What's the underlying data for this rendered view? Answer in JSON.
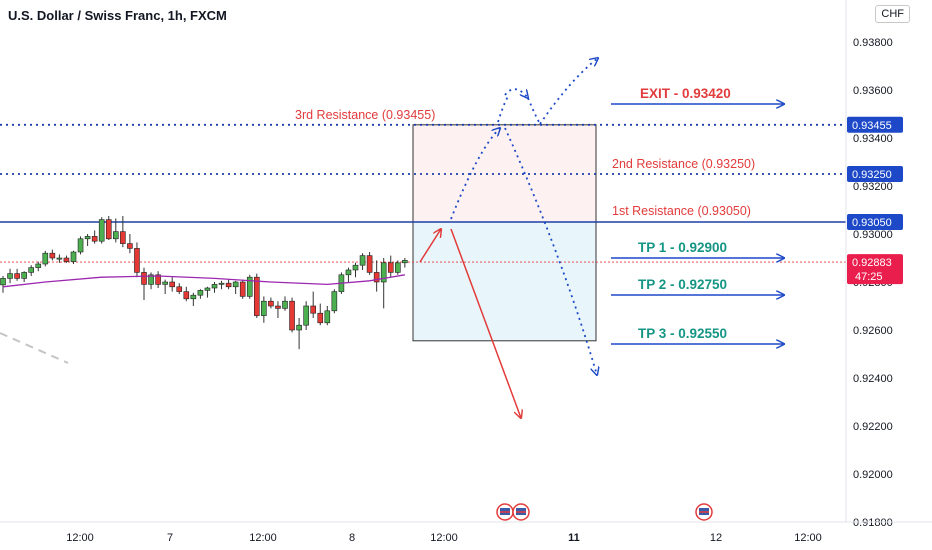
{
  "title": "U.S. Dollar / Swiss Franc, 1h, FXCM",
  "currency": "CHF",
  "colors": {
    "resistance_line": "#1d3ea8",
    "resistance_text": "#e23b3b",
    "tp_text": "#159584",
    "exit_text": "#e23b3b",
    "arrow": "#1d49c8",
    "bull": "#4caf50",
    "bear": "#e53935",
    "ma": "#9c27b0",
    "price_badge": "#e91e4d",
    "level_badge": "#1d49c8"
  },
  "chart_data": {
    "type": "candlestick",
    "ylim": [
      0.918,
      0.939
    ],
    "y_ticks": [
      "0.93800",
      "0.93600",
      "0.93400",
      "0.93200",
      "0.93000",
      "0.92800",
      "0.92600",
      "0.92400",
      "0.92200",
      "0.92000",
      "0.91800"
    ],
    "x_ticks": [
      {
        "label": "12:00",
        "bold": false
      },
      {
        "label": "7",
        "bold": false
      },
      {
        "label": "12:00",
        "bold": false
      },
      {
        "label": "8",
        "bold": false
      },
      {
        "label": "12:00",
        "bold": false
      },
      {
        "label": "11",
        "bold": true
      },
      {
        "label": "12",
        "bold": false
      },
      {
        "label": "12:00",
        "bold": false
      }
    ],
    "candles": [
      [
        0.92788,
        0.92825,
        0.92755,
        0.92815
      ],
      [
        0.92815,
        0.92855,
        0.92795,
        0.92835
      ],
      [
        0.92835,
        0.92855,
        0.92805,
        0.92815
      ],
      [
        0.92815,
        0.92845,
        0.928,
        0.9284
      ],
      [
        0.9284,
        0.9287,
        0.92825,
        0.9286
      ],
      [
        0.9286,
        0.92885,
        0.92845,
        0.92875
      ],
      [
        0.92875,
        0.9293,
        0.92865,
        0.9292
      ],
      [
        0.9292,
        0.92935,
        0.9289,
        0.929
      ],
      [
        0.929,
        0.92915,
        0.9288,
        0.929
      ],
      [
        0.929,
        0.9291,
        0.9288,
        0.92885
      ],
      [
        0.92885,
        0.9293,
        0.92875,
        0.92925
      ],
      [
        0.92925,
        0.9299,
        0.92915,
        0.9298
      ],
      [
        0.9298,
        0.93,
        0.9295,
        0.9299
      ],
      [
        0.9299,
        0.93015,
        0.9296,
        0.9297
      ],
      [
        0.9297,
        0.9307,
        0.9296,
        0.9306
      ],
      [
        0.9306,
        0.93075,
        0.92975,
        0.9298
      ],
      [
        0.9298,
        0.93065,
        0.92965,
        0.9301
      ],
      [
        0.9301,
        0.93075,
        0.92945,
        0.9296
      ],
      [
        0.9296,
        0.93,
        0.9292,
        0.9294
      ],
      [
        0.9294,
        0.92965,
        0.9282,
        0.9284
      ],
      [
        0.9284,
        0.9286,
        0.92725,
        0.9279
      ],
      [
        0.9279,
        0.9284,
        0.9277,
        0.9283
      ],
      [
        0.9283,
        0.92845,
        0.92775,
        0.9279
      ],
      [
        0.9279,
        0.9281,
        0.9275,
        0.928
      ],
      [
        0.928,
        0.9282,
        0.9276,
        0.9278
      ],
      [
        0.9278,
        0.92795,
        0.9275,
        0.9276
      ],
      [
        0.9276,
        0.9278,
        0.9272,
        0.9273
      ],
      [
        0.9273,
        0.92755,
        0.927,
        0.92745
      ],
      [
        0.92745,
        0.9277,
        0.9273,
        0.92765
      ],
      [
        0.92765,
        0.9278,
        0.92735,
        0.92775
      ],
      [
        0.92775,
        0.928,
        0.92755,
        0.9279
      ],
      [
        0.9279,
        0.92805,
        0.9277,
        0.92795
      ],
      [
        0.92795,
        0.9281,
        0.9277,
        0.9278
      ],
      [
        0.9278,
        0.92805,
        0.9275,
        0.928
      ],
      [
        0.928,
        0.9281,
        0.9273,
        0.9274
      ],
      [
        0.9274,
        0.9283,
        0.9273,
        0.9282
      ],
      [
        0.9282,
        0.92835,
        0.9265,
        0.9266
      ],
      [
        0.9266,
        0.9274,
        0.9263,
        0.9272
      ],
      [
        0.9272,
        0.92735,
        0.9269,
        0.927
      ],
      [
        0.927,
        0.9272,
        0.9265,
        0.9269
      ],
      [
        0.9269,
        0.9274,
        0.9268,
        0.9272
      ],
      [
        0.9272,
        0.92735,
        0.9259,
        0.926
      ],
      [
        0.926,
        0.9265,
        0.9252,
        0.9262
      ],
      [
        0.9262,
        0.9272,
        0.926,
        0.927
      ],
      [
        0.927,
        0.9276,
        0.9265,
        0.9267
      ],
      [
        0.9267,
        0.9271,
        0.9262,
        0.9263
      ],
      [
        0.9263,
        0.927,
        0.9262,
        0.9268
      ],
      [
        0.9268,
        0.9277,
        0.9267,
        0.9276
      ],
      [
        0.9276,
        0.9284,
        0.9275,
        0.9283
      ],
      [
        0.9283,
        0.9286,
        0.928,
        0.9285
      ],
      [
        0.9285,
        0.9288,
        0.9282,
        0.9287
      ],
      [
        0.9287,
        0.9292,
        0.9285,
        0.9291
      ],
      [
        0.9291,
        0.92925,
        0.9283,
        0.9284
      ],
      [
        0.9284,
        0.9289,
        0.9276,
        0.928
      ],
      [
        0.928,
        0.929,
        0.9269,
        0.9288
      ],
      [
        0.9288,
        0.9291,
        0.9282,
        0.9284
      ],
      [
        0.9284,
        0.9289,
        0.9283,
        0.9288
      ],
      [
        0.9288,
        0.929,
        0.9286,
        0.9289
      ]
    ],
    "moving_average": {
      "points": [
        [
          0,
          0.9278
        ],
        [
          6,
          0.928
        ],
        [
          14,
          0.9282
        ],
        [
          22,
          0.92825
        ],
        [
          30,
          0.92815
        ],
        [
          38,
          0.928
        ],
        [
          46,
          0.9279
        ],
        [
          52,
          0.92805
        ],
        [
          57,
          0.9283
        ]
      ]
    },
    "levels": [
      {
        "value": 0.93455,
        "badge": "0.93455",
        "label": "3rd Resistance (0.93455)",
        "style": "dotted"
      },
      {
        "value": 0.9325,
        "badge": "0.93250",
        "label": "2nd Resistance (0.93250)",
        "style": "dotted"
      },
      {
        "value": 0.9305,
        "badge": "0.93050",
        "label": "1st Resistance (0.93050)",
        "style": "solid"
      }
    ],
    "current_price": {
      "value": 0.92883,
      "badge": "0.92883",
      "countdown": "47:25"
    },
    "zones": [
      {
        "from": 0.9305,
        "to": 0.93455,
        "color": "#fdf1f1"
      },
      {
        "from": 0.92555,
        "to": 0.9305,
        "color": "#e8f6fb"
      }
    ],
    "targets": [
      {
        "label": "EXIT - 0.93420",
        "value": 0.9342,
        "kind": "exit"
      },
      {
        "label": "TP 1 - 0.92900",
        "value": 0.929,
        "kind": "tp"
      },
      {
        "label": "TP 2 - 0.92750",
        "value": 0.9275,
        "kind": "tp"
      },
      {
        "label": "TP 3 - 0.92550",
        "value": 0.9255,
        "kind": "tp"
      }
    ]
  }
}
